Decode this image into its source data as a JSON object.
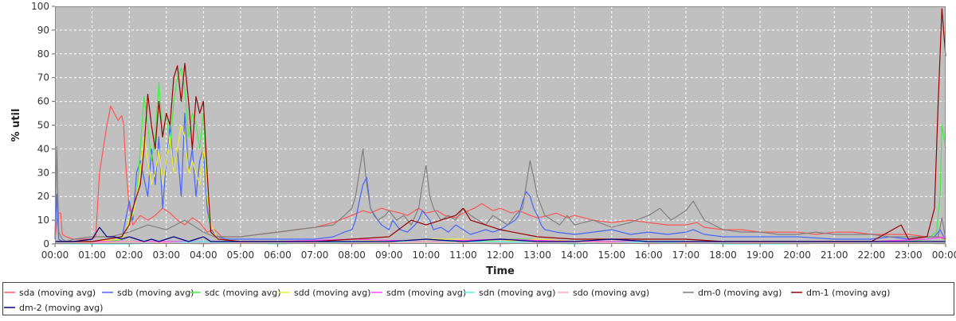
{
  "chart_data": {
    "type": "line",
    "title": "",
    "xlabel": "Time",
    "ylabel": "% util",
    "ylim": [
      0,
      100
    ],
    "yticks": [
      0,
      10,
      20,
      30,
      40,
      50,
      60,
      70,
      80,
      90,
      100
    ],
    "xlim": [
      0,
      24
    ],
    "xticks": [
      {
        "v": 0,
        "label": "00:00"
      },
      {
        "v": 1,
        "label": "01:00"
      },
      {
        "v": 2,
        "label": "02:00"
      },
      {
        "v": 3,
        "label": "03:00"
      },
      {
        "v": 4,
        "label": "04:00"
      },
      {
        "v": 5,
        "label": "05:00"
      },
      {
        "v": 6,
        "label": "06:00"
      },
      {
        "v": 7,
        "label": "07:00"
      },
      {
        "v": 8,
        "label": "08:00"
      },
      {
        "v": 9,
        "label": "09:00"
      },
      {
        "v": 10,
        "label": "10:00"
      },
      {
        "v": 11,
        "label": "11:00"
      },
      {
        "v": 12,
        "label": "12:00"
      },
      {
        "v": 13,
        "label": "13:00"
      },
      {
        "v": 14,
        "label": "14:00"
      },
      {
        "v": 15,
        "label": "15:00"
      },
      {
        "v": 16,
        "label": "16:00"
      },
      {
        "v": 17,
        "label": "17:00"
      },
      {
        "v": 18,
        "label": "18:00"
      },
      {
        "v": 19,
        "label": "19:00"
      },
      {
        "v": 20,
        "label": "20:00"
      },
      {
        "v": 21,
        "label": "21:00"
      },
      {
        "v": 22,
        "label": "22:00"
      },
      {
        "v": 23,
        "label": "23:00"
      },
      {
        "v": 24,
        "label": "00:00"
      }
    ],
    "grid": true,
    "legend_position": "bottom",
    "plot_background": "#c0c0c0",
    "series": [
      {
        "name": "sda (moving avg)",
        "color": "#ff5555",
        "x": [
          0.0,
          0.08,
          0.15,
          0.2,
          0.3,
          0.5,
          0.8,
          1.0,
          1.1,
          1.2,
          1.4,
          1.5,
          1.6,
          1.7,
          1.8,
          1.85,
          1.9,
          2.0,
          2.1,
          2.3,
          2.5,
          2.7,
          2.9,
          3.1,
          3.3,
          3.5,
          3.7,
          3.9,
          4.1,
          4.3,
          4.5,
          4.8,
          5.0,
          5.5,
          6.0,
          6.5,
          7.0,
          7.5,
          8.0,
          8.3,
          8.5,
          8.8,
          9.0,
          9.3,
          9.5,
          9.8,
          10.0,
          10.3,
          10.5,
          10.8,
          11.0,
          11.3,
          11.5,
          11.8,
          12.0,
          12.3,
          12.5,
          12.8,
          13.0,
          13.3,
          13.5,
          13.8,
          14.0,
          14.5,
          15.0,
          15.5,
          16.0,
          16.5,
          17.0,
          17.3,
          17.5,
          18.0,
          18.5,
          19.0,
          19.5,
          20.0,
          20.5,
          21.0,
          21.5,
          22.0,
          22.5,
          23.0,
          23.5,
          23.8,
          24.0
        ],
        "y": [
          2,
          13,
          13,
          4,
          3,
          2,
          2,
          2,
          3,
          30,
          50,
          58,
          55,
          52,
          54,
          50,
          35,
          15,
          8,
          12,
          10,
          12,
          15,
          13,
          10,
          8,
          11,
          9,
          5,
          6,
          3,
          3,
          3,
          4,
          5,
          6,
          7,
          9,
          12,
          14,
          13,
          15,
          14,
          13,
          12,
          15,
          13,
          14,
          12,
          11,
          13,
          15,
          17,
          14,
          15,
          13,
          14,
          12,
          11,
          12,
          13,
          11,
          12,
          10,
          9,
          10,
          9,
          8,
          8,
          9,
          7,
          6,
          6,
          5,
          5,
          5,
          4,
          5,
          5,
          4,
          4,
          4,
          3,
          3,
          2
        ]
      },
      {
        "name": "sdb (moving avg)",
        "color": "#4466ff",
        "x": [
          0.0,
          0.05,
          0.1,
          0.2,
          1.0,
          1.8,
          2.0,
          2.1,
          2.2,
          2.3,
          2.5,
          2.6,
          2.7,
          2.8,
          2.9,
          3.0,
          3.1,
          3.2,
          3.3,
          3.4,
          3.5,
          3.6,
          3.7,
          3.8,
          3.9,
          4.0,
          4.1,
          4.2,
          4.4,
          4.6,
          5.0,
          6.0,
          7.0,
          7.5,
          7.8,
          8.0,
          8.1,
          8.2,
          8.3,
          8.4,
          8.5,
          8.6,
          8.8,
          9.0,
          9.1,
          9.3,
          9.5,
          9.7,
          9.8,
          9.9,
          10.0,
          10.1,
          10.2,
          10.4,
          10.6,
          10.8,
          11.0,
          11.2,
          11.4,
          11.6,
          11.8,
          12.0,
          12.2,
          12.4,
          12.5,
          12.6,
          12.7,
          12.8,
          12.9,
          13.0,
          13.1,
          13.2,
          13.5,
          14.0,
          14.5,
          15.0,
          15.5,
          16.0,
          16.5,
          17.0,
          17.2,
          17.5,
          18.0,
          19.0,
          20.0,
          21.0,
          22.0,
          22.5,
          23.0,
          23.5,
          23.7,
          23.85,
          23.95,
          24.0
        ],
        "y": [
          2,
          21,
          2,
          1,
          1,
          2,
          18,
          10,
          30,
          35,
          20,
          40,
          25,
          45,
          15,
          35,
          50,
          30,
          40,
          20,
          55,
          30,
          40,
          20,
          35,
          40,
          15,
          6,
          3,
          2,
          2,
          2,
          2,
          3,
          5,
          6,
          10,
          18,
          25,
          28,
          15,
          12,
          8,
          6,
          10,
          6,
          5,
          8,
          10,
          14,
          12,
          10,
          6,
          7,
          5,
          8,
          6,
          4,
          5,
          6,
          5,
          6,
          8,
          10,
          12,
          18,
          22,
          20,
          15,
          12,
          8,
          6,
          5,
          4,
          5,
          6,
          4,
          5,
          4,
          5,
          6,
          4,
          3,
          3,
          3,
          2,
          2,
          3,
          2,
          3,
          3,
          6,
          3,
          1
        ]
      },
      {
        "name": "sdc (moving avg)",
        "color": "#44ee44",
        "x": [
          0.0,
          1.0,
          1.5,
          1.8,
          1.9,
          2.0,
          2.1,
          2.2,
          2.3,
          2.4,
          2.5,
          2.6,
          2.7,
          2.8,
          2.9,
          3.0,
          3.1,
          3.2,
          3.3,
          3.4,
          3.5,
          3.6,
          3.7,
          3.8,
          3.9,
          4.0,
          4.1,
          4.2,
          4.4,
          5.0,
          6.0,
          7.0,
          8.0,
          9.0,
          10.0,
          11.0,
          12.0,
          13.0,
          14.0,
          15.0,
          16.0,
          17.0,
          18.0,
          19.0,
          20.0,
          21.0,
          22.0,
          23.0,
          23.5,
          23.75,
          23.85,
          23.9,
          23.95,
          24.0
        ],
        "y": [
          1,
          1,
          1,
          2,
          5,
          10,
          15,
          20,
          40,
          62,
          50,
          35,
          45,
          68,
          45,
          55,
          40,
          60,
          70,
          74,
          65,
          45,
          55,
          50,
          40,
          55,
          20,
          5,
          2,
          1,
          1,
          1,
          2,
          1,
          2,
          1,
          2,
          2,
          1,
          1,
          1,
          1,
          1,
          1,
          1,
          1,
          1,
          1,
          2,
          5,
          20,
          50,
          45,
          40
        ]
      },
      {
        "name": "sdd (moving avg)",
        "color": "#eeee33",
        "x": [
          0.0,
          1.0,
          1.8,
          1.9,
          2.0,
          2.1,
          2.2,
          2.3,
          2.4,
          2.5,
          2.6,
          2.7,
          2.8,
          2.9,
          3.0,
          3.1,
          3.2,
          3.3,
          3.4,
          3.5,
          3.6,
          3.7,
          3.8,
          3.9,
          4.0,
          4.05,
          4.1,
          4.2,
          4.4,
          5.0,
          6.0,
          7.0,
          8.0,
          9.0,
          10.0,
          11.0,
          12.0,
          13.0,
          14.0,
          15.0,
          16.0,
          17.0,
          18.0,
          19.0,
          20.0,
          21.0,
          22.0,
          23.0,
          24.0
        ],
        "y": [
          1,
          1,
          2,
          5,
          10,
          12,
          20,
          30,
          45,
          35,
          25,
          30,
          40,
          25,
          35,
          45,
          30,
          40,
          50,
          45,
          30,
          35,
          30,
          25,
          40,
          35,
          20,
          8,
          2,
          1,
          1,
          1,
          2,
          1,
          2,
          2,
          1,
          2,
          1,
          1,
          1,
          1,
          1,
          1,
          1,
          1,
          1,
          1,
          1
        ]
      },
      {
        "name": "sdm (moving avg)",
        "color": "#ff44ff",
        "x": [
          0.0,
          2.0,
          4.0,
          6.0,
          8.0,
          10.0,
          12.0,
          14.0,
          16.0,
          18.0,
          20.0,
          22.0,
          23.5,
          24.0
        ],
        "y": [
          1,
          1,
          1,
          1,
          2,
          1,
          2,
          1,
          1,
          1,
          1,
          1,
          2,
          3
        ]
      },
      {
        "name": "sdn (moving avg)",
        "color": "#55eeee",
        "x": [
          0.0,
          2.0,
          4.0,
          6.0,
          8.0,
          10.0,
          12.0,
          14.0,
          16.0,
          18.0,
          20.0,
          22.0,
          24.0
        ],
        "y": [
          0,
          0,
          1,
          0,
          1,
          1,
          1,
          0,
          1,
          0,
          0,
          1,
          0
        ]
      },
      {
        "name": "sdo (moving avg)",
        "color": "#ffaaaa",
        "x": [
          0.0,
          2.0,
          4.0,
          6.0,
          8.0,
          10.0,
          12.0,
          14.0,
          16.0,
          18.0,
          20.0,
          22.0,
          24.0
        ],
        "y": [
          0,
          1,
          0,
          1,
          0,
          1,
          0,
          1,
          0,
          1,
          0,
          1,
          0
        ]
      },
      {
        "name": "dm-0 (moving avg)",
        "color": "#808080",
        "x": [
          0.0,
          0.05,
          0.1,
          0.2,
          0.3,
          0.5,
          1.0,
          1.5,
          2.0,
          2.5,
          3.0,
          3.5,
          4.0,
          4.3,
          4.6,
          5.0,
          5.5,
          6.0,
          6.5,
          7.0,
          7.5,
          7.8,
          8.0,
          8.1,
          8.2,
          8.3,
          8.4,
          8.5,
          8.7,
          8.9,
          9.0,
          9.2,
          9.4,
          9.6,
          9.8,
          9.9,
          10.0,
          10.1,
          10.2,
          10.4,
          10.6,
          10.8,
          11.0,
          11.2,
          11.4,
          11.6,
          11.8,
          12.0,
          12.2,
          12.4,
          12.6,
          12.7,
          12.8,
          12.9,
          13.0,
          13.2,
          13.4,
          13.6,
          13.8,
          14.0,
          14.5,
          15.0,
          15.5,
          16.0,
          16.3,
          16.6,
          16.8,
          17.0,
          17.2,
          17.5,
          18.0,
          18.5,
          19.0,
          19.5,
          20.0,
          20.5,
          21.0,
          21.5,
          22.0,
          22.5,
          23.0,
          23.5,
          23.8,
          23.9,
          24.0
        ],
        "y": [
          3,
          41,
          5,
          2,
          1,
          2,
          3,
          3,
          5,
          8,
          6,
          10,
          5,
          3,
          3,
          3,
          4,
          5,
          6,
          7,
          8,
          12,
          15,
          20,
          30,
          40,
          25,
          15,
          10,
          12,
          14,
          10,
          12,
          8,
          15,
          25,
          33,
          20,
          15,
          10,
          12,
          10,
          15,
          12,
          10,
          8,
          12,
          10,
          8,
          12,
          15,
          25,
          35,
          28,
          20,
          12,
          10,
          8,
          12,
          8,
          10,
          7,
          9,
          12,
          15,
          10,
          12,
          14,
          18,
          10,
          6,
          5,
          5,
          4,
          4,
          5,
          4,
          4,
          4,
          3,
          3,
          3,
          3,
          11,
          2
        ]
      },
      {
        "name": "dm-1 (moving avg)",
        "color": "#990000",
        "x": [
          0.0,
          1.0,
          1.8,
          2.0,
          2.1,
          2.3,
          2.4,
          2.5,
          2.6,
          2.7,
          2.8,
          2.9,
          3.0,
          3.1,
          3.2,
          3.3,
          3.4,
          3.5,
          3.6,
          3.7,
          3.8,
          3.9,
          4.0,
          4.1,
          4.2,
          4.4,
          5.0,
          6.0,
          7.0,
          8.0,
          9.0,
          9.6,
          10.0,
          10.4,
          10.8,
          11.0,
          11.2,
          11.6,
          12.0,
          13.0,
          14.0,
          15.0,
          16.0,
          17.0,
          18.0,
          19.0,
          20.0,
          21.0,
          22.0,
          22.8,
          23.0,
          23.5,
          23.7,
          23.8,
          23.9,
          24.0
        ],
        "y": [
          1,
          1,
          3,
          8,
          15,
          25,
          40,
          63,
          50,
          40,
          60,
          45,
          55,
          50,
          70,
          75,
          60,
          76,
          60,
          40,
          62,
          55,
          60,
          30,
          5,
          2,
          1,
          1,
          1,
          2,
          3,
          10,
          8,
          10,
          12,
          15,
          10,
          8,
          6,
          3,
          2,
          2,
          2,
          2,
          1,
          1,
          1,
          1,
          1,
          8,
          2,
          3,
          15,
          60,
          99,
          79
        ]
      },
      {
        "name": "dm-2 (moving avg)",
        "color": "#000080",
        "x": [
          0.0,
          0.5,
          1.0,
          1.2,
          1.4,
          1.6,
          1.8,
          2.0,
          2.2,
          2.4,
          2.6,
          2.8,
          3.0,
          3.2,
          3.4,
          3.6,
          3.8,
          4.0,
          4.2,
          4.4,
          5.0,
          6.0,
          7.0,
          8.0,
          9.0,
          10.0,
          11.0,
          12.0,
          13.0,
          14.0,
          15.0,
          16.0,
          17.0,
          18.0,
          19.0,
          20.0,
          21.0,
          22.0,
          23.0,
          24.0
        ],
        "y": [
          1,
          1,
          2,
          7,
          3,
          3,
          2,
          3,
          2,
          1,
          2,
          1,
          2,
          3,
          2,
          1,
          2,
          3,
          1,
          1,
          1,
          1,
          1,
          1,
          1,
          2,
          1,
          2,
          1,
          1,
          2,
          1,
          1,
          1,
          1,
          1,
          1,
          1,
          1,
          1
        ]
      }
    ]
  }
}
